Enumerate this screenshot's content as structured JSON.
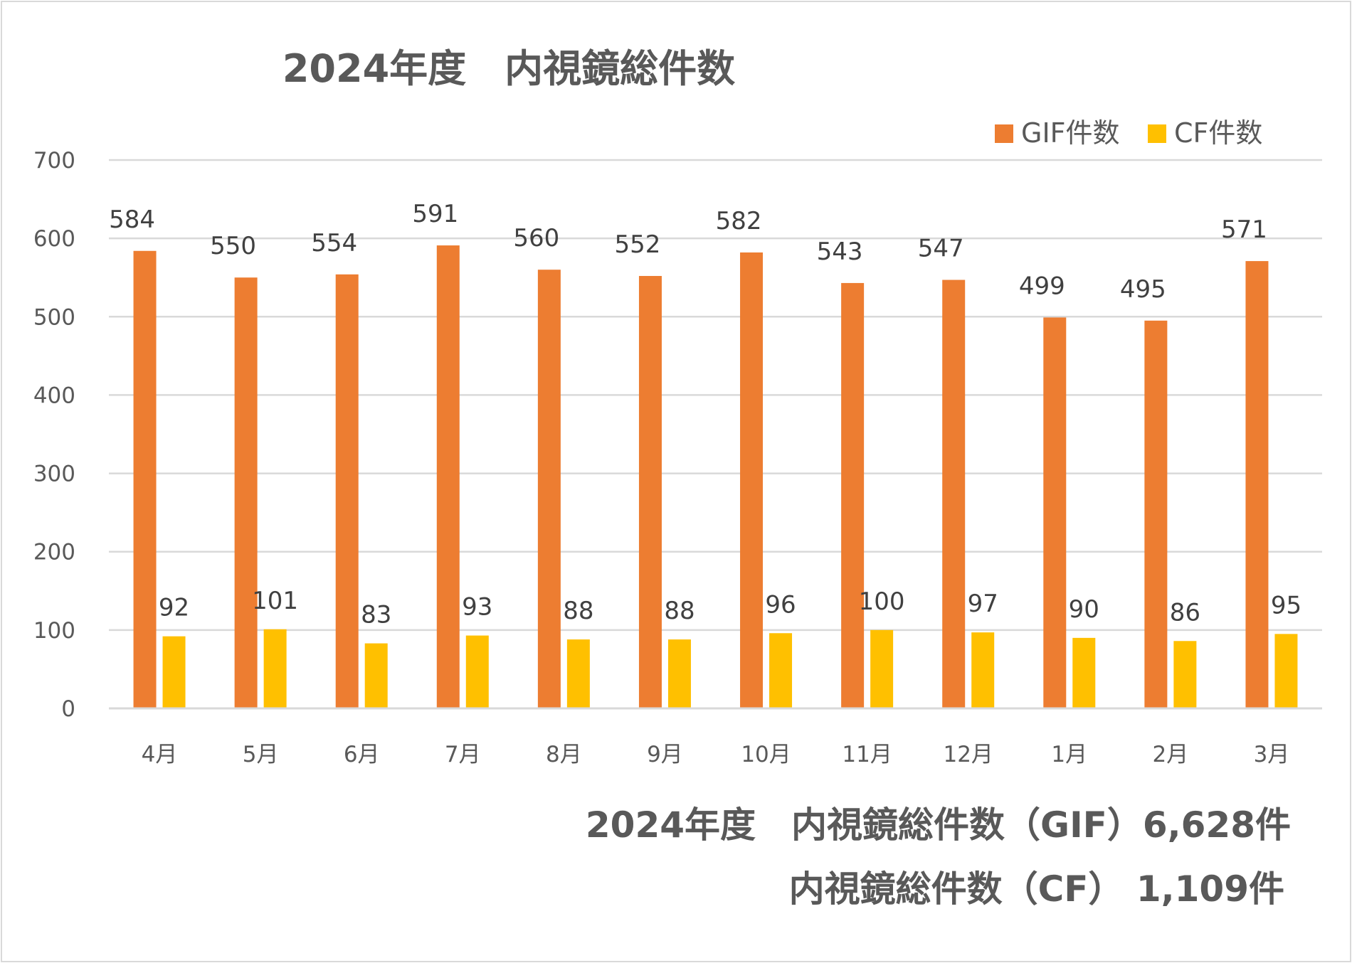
{
  "chart_data": {
    "type": "bar",
    "title": "2024年度　内視鏡総件数",
    "categories": [
      "4月",
      "5月",
      "6月",
      "7月",
      "8月",
      "9月",
      "10月",
      "11月",
      "12月",
      "1月",
      "2月",
      "3月"
    ],
    "series": [
      {
        "name": "GIF件数",
        "color": "#ED7D31",
        "values": [
          584,
          550,
          554,
          591,
          560,
          552,
          582,
          543,
          547,
          499,
          495,
          571
        ]
      },
      {
        "name": "CF件数",
        "color": "#FFC000",
        "values": [
          92,
          101,
          83,
          93,
          88,
          88,
          96,
          100,
          97,
          90,
          86,
          95
        ]
      }
    ],
    "ylim": [
      0,
      700
    ],
    "yticks": [
      0,
      100,
      200,
      300,
      400,
      500,
      600,
      700
    ],
    "grid": true,
    "legend_position": "top-right",
    "data_labels": true
  },
  "summary": {
    "line1": "2024年度　内視鏡総件数（GIF）6,628件",
    "line2": "内視鏡総件数（CF） 1,109件"
  }
}
